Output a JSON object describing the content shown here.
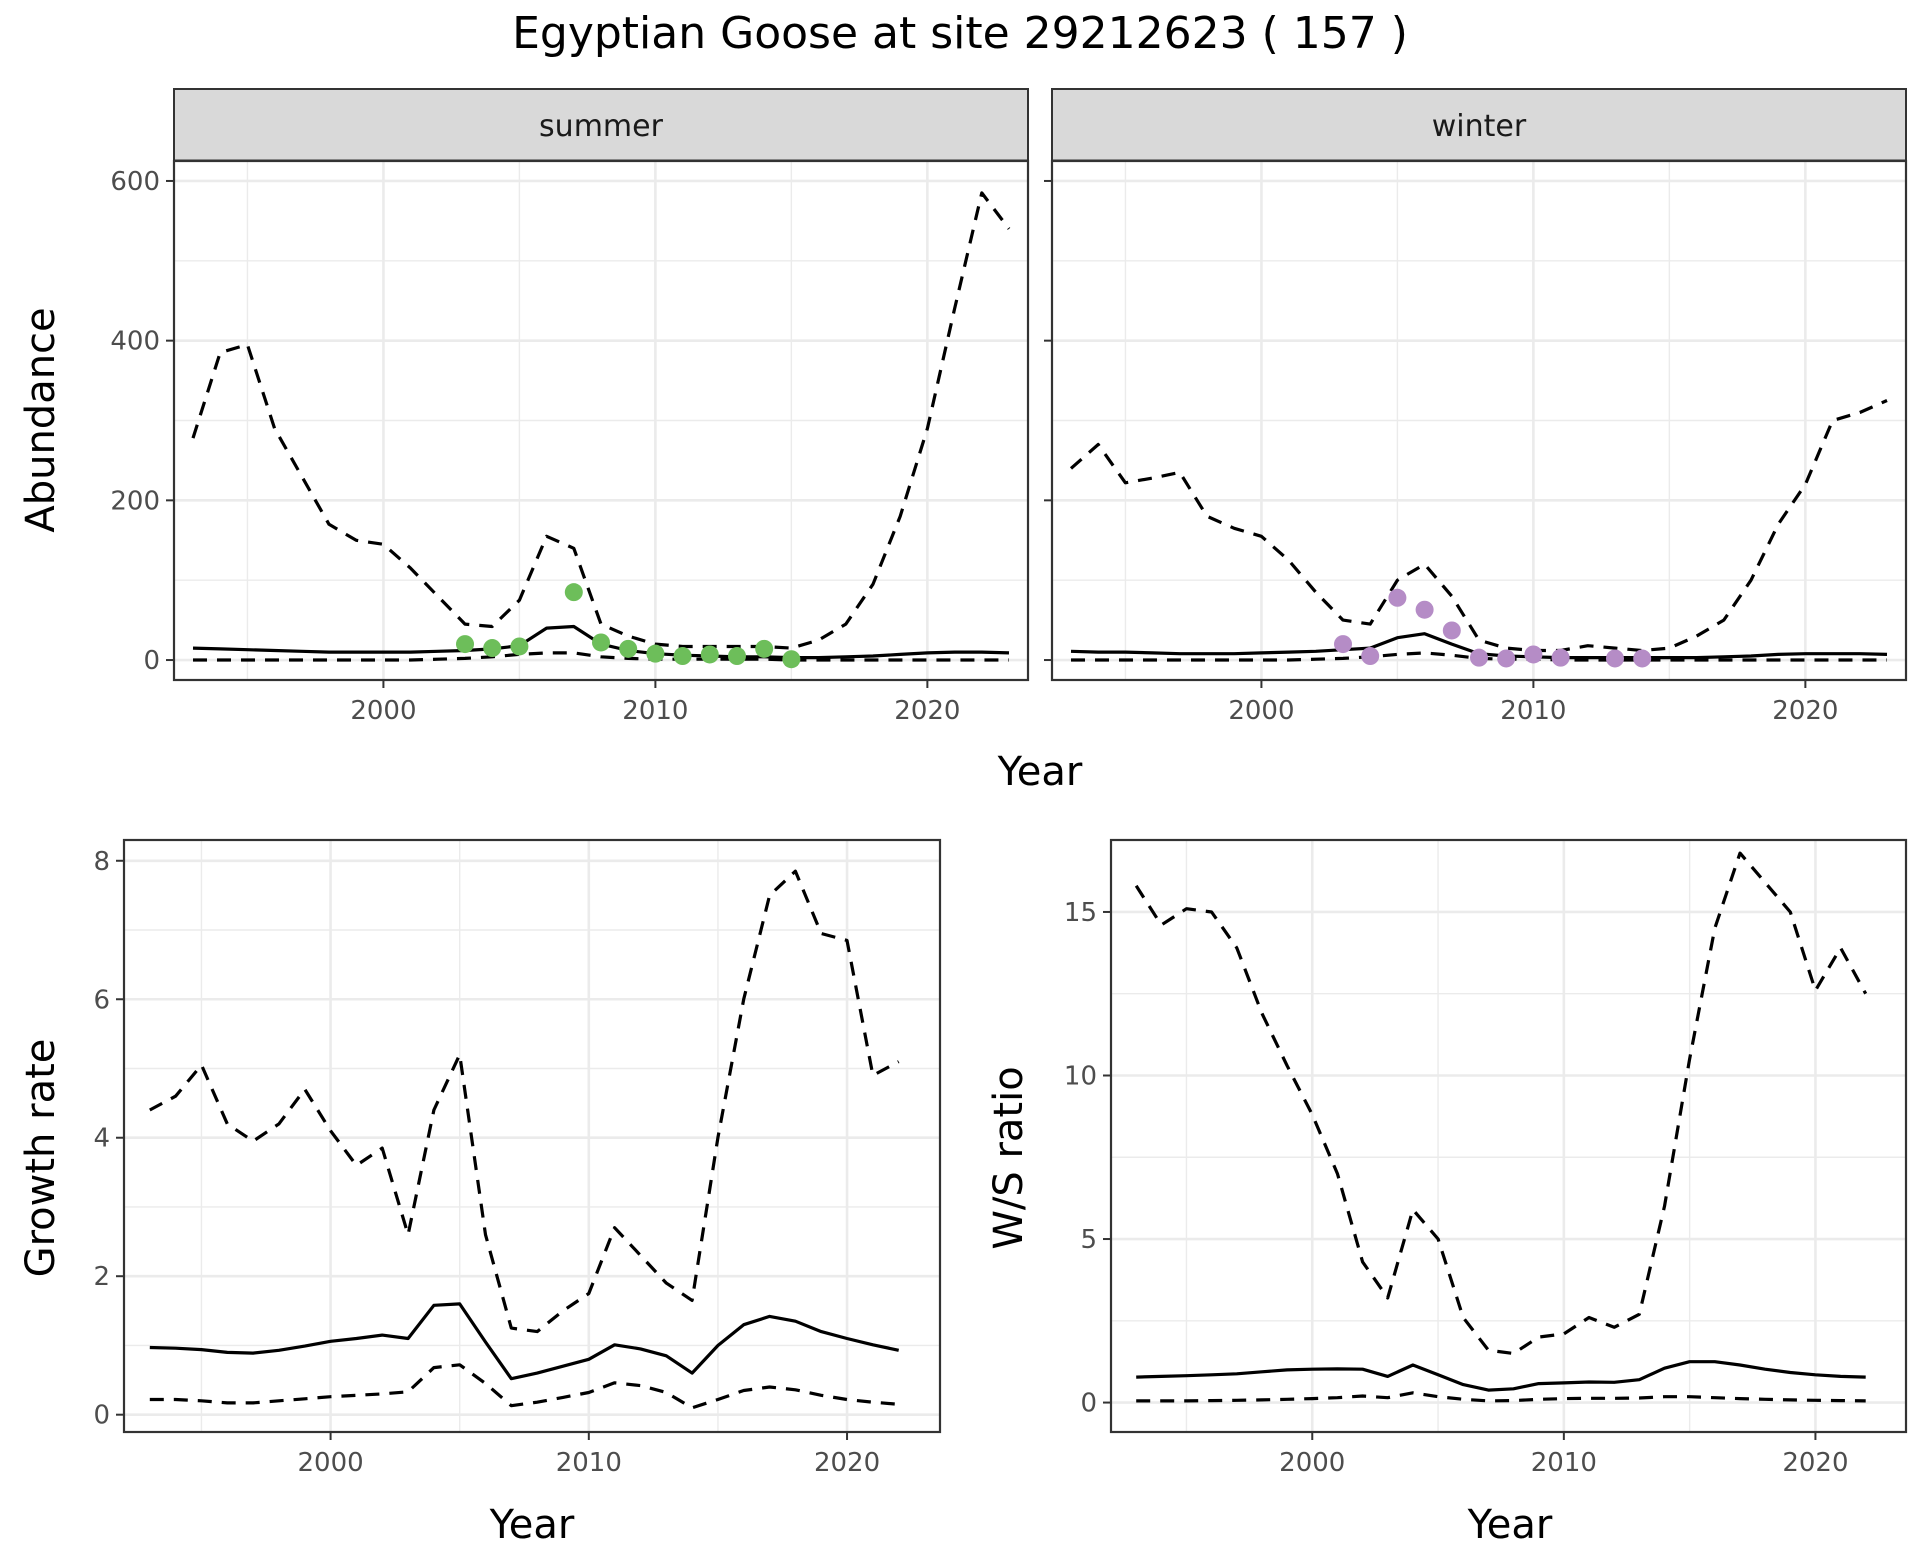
{
  "title": "Egyptian Goose at site 29212623 ( 157 )",
  "colors": {
    "summer_points": "#6dbe5a",
    "winter_points": "#b58cc6",
    "line": "#000000",
    "strip_fill": "#d9d9d9",
    "grid": "#ebebeb"
  },
  "chart_data": [
    {
      "id": "summer",
      "type": "line",
      "facet": "summer",
      "xlabel": "Year",
      "ylabel": "Abundance",
      "xlim": [
        1992.3,
        2023.7
      ],
      "ylim": [
        -25,
        625
      ],
      "xticks": [
        2000,
        2010,
        2020
      ],
      "yticks": [
        0,
        200,
        400,
        600
      ],
      "x": [
        1993,
        1994,
        1995,
        1996,
        1997,
        1998,
        1999,
        2000,
        2001,
        2002,
        2003,
        2004,
        2005,
        2006,
        2007,
        2008,
        2009,
        2010,
        2011,
        2012,
        2013,
        2014,
        2015,
        2016,
        2017,
        2018,
        2019,
        2020,
        2021,
        2022,
        2023
      ],
      "series": [
        {
          "role": "estimate",
          "values": [
            15,
            14,
            13,
            12,
            11,
            10,
            10,
            10,
            10,
            11,
            12,
            14,
            18,
            40,
            42,
            20,
            12,
            8,
            6,
            5,
            4,
            4,
            3,
            3,
            4,
            5,
            7,
            9,
            10,
            10,
            9
          ]
        },
        {
          "role": "upper",
          "values": [
            278,
            385,
            395,
            290,
            230,
            170,
            150,
            145,
            115,
            80,
            45,
            42,
            75,
            155,
            140,
            45,
            30,
            20,
            17,
            17,
            17,
            17,
            15,
            25,
            45,
            95,
            180,
            290,
            440,
            585,
            540
          ]
        },
        {
          "role": "lower",
          "values": [
            0,
            0,
            0,
            0,
            0,
            0,
            0,
            0,
            0,
            1,
            2,
            4,
            7,
            9,
            9,
            4,
            2,
            1,
            1,
            1,
            1,
            1,
            0,
            0,
            0,
            0,
            0,
            0,
            0,
            0,
            0
          ]
        }
      ],
      "points": {
        "color": "#6dbe5a",
        "x": [
          2003,
          2004,
          2005,
          2007,
          2008,
          2009,
          2010,
          2011,
          2012,
          2013,
          2014,
          2015
        ],
        "y": [
          20,
          15,
          17,
          85,
          22,
          14,
          8,
          5,
          7,
          5,
          14,
          1
        ]
      }
    },
    {
      "id": "winter",
      "type": "line",
      "facet": "winter",
      "xlabel": "Year",
      "ylabel": "Abundance",
      "xlim": [
        1992.3,
        2023.7
      ],
      "ylim": [
        -25,
        625
      ],
      "xticks": [
        2000,
        2010,
        2020
      ],
      "yticks": [
        0,
        200,
        400,
        600
      ],
      "x": [
        1993,
        1994,
        1995,
        1996,
        1997,
        1998,
        1999,
        2000,
        2001,
        2002,
        2003,
        2004,
        2005,
        2006,
        2007,
        2008,
        2009,
        2010,
        2011,
        2012,
        2013,
        2014,
        2015,
        2016,
        2017,
        2018,
        2019,
        2020,
        2021,
        2022,
        2023
      ],
      "series": [
        {
          "role": "estimate",
          "values": [
            11,
            10,
            10,
            9,
            8,
            8,
            8,
            9,
            10,
            11,
            13,
            15,
            28,
            33,
            20,
            8,
            5,
            4,
            3,
            3,
            3,
            3,
            3,
            3,
            4,
            5,
            7,
            8,
            8,
            8,
            7
          ]
        },
        {
          "role": "upper",
          "values": [
            240,
            270,
            222,
            228,
            235,
            180,
            165,
            155,
            125,
            85,
            50,
            45,
            100,
            120,
            80,
            25,
            15,
            12,
            12,
            18,
            15,
            12,
            15,
            30,
            50,
            100,
            170,
            220,
            300,
            310,
            325
          ]
        },
        {
          "role": "lower",
          "values": [
            0,
            0,
            0,
            0,
            0,
            0,
            0,
            0,
            0,
            1,
            2,
            4,
            7,
            9,
            6,
            2,
            1,
            1,
            0,
            0,
            0,
            0,
            0,
            0,
            0,
            0,
            0,
            0,
            0,
            0,
            0
          ]
        }
      ],
      "points": {
        "color": "#b58cc6",
        "x": [
          2003,
          2004,
          2005,
          2006,
          2007,
          2008,
          2009,
          2010,
          2011,
          2013,
          2014
        ],
        "y": [
          20,
          5,
          78,
          63,
          37,
          3,
          2,
          7,
          3,
          2,
          2
        ]
      }
    },
    {
      "id": "growth",
      "type": "line",
      "xlabel": "Year",
      "ylabel": "Growth rate",
      "xlim": [
        1992.0,
        2023.6
      ],
      "ylim": [
        -0.25,
        8.3
      ],
      "xticks": [
        2000,
        2010,
        2020
      ],
      "yticks": [
        0,
        2,
        4,
        6,
        8
      ],
      "x": [
        1993,
        1994,
        1995,
        1996,
        1997,
        1998,
        1999,
        2000,
        2001,
        2002,
        2003,
        2004,
        2005,
        2006,
        2007,
        2008,
        2009,
        2010,
        2011,
        2012,
        2013,
        2014,
        2015,
        2016,
        2017,
        2018,
        2019,
        2020,
        2021,
        2022
      ],
      "series": [
        {
          "role": "estimate",
          "values": [
            0.97,
            0.96,
            0.94,
            0.9,
            0.89,
            0.93,
            0.99,
            1.06,
            1.1,
            1.15,
            1.1,
            1.58,
            1.6,
            1.05,
            0.52,
            0.6,
            0.7,
            0.8,
            1.01,
            0.95,
            0.85,
            0.6,
            1.0,
            1.3,
            1.42,
            1.35,
            1.2,
            1.1,
            1.01,
            0.93
          ]
        },
        {
          "role": "upper",
          "values": [
            4.4,
            4.6,
            5.05,
            4.2,
            3.95,
            4.2,
            4.7,
            4.1,
            3.6,
            3.85,
            2.6,
            4.4,
            5.2,
            2.6,
            1.25,
            1.2,
            1.5,
            1.75,
            2.7,
            2.3,
            1.9,
            1.65,
            4.0,
            6.0,
            7.5,
            7.85,
            6.95,
            6.85,
            4.9,
            5.1
          ]
        },
        {
          "role": "lower",
          "values": [
            0.22,
            0.22,
            0.2,
            0.17,
            0.17,
            0.2,
            0.23,
            0.26,
            0.28,
            0.3,
            0.33,
            0.68,
            0.72,
            0.45,
            0.13,
            0.18,
            0.25,
            0.32,
            0.46,
            0.42,
            0.32,
            0.1,
            0.22,
            0.35,
            0.4,
            0.36,
            0.28,
            0.22,
            0.18,
            0.15
          ]
        }
      ]
    },
    {
      "id": "ratio",
      "type": "line",
      "xlabel": "Year",
      "ylabel": "W/S ratio",
      "xlim": [
        1992.0,
        2023.6
      ],
      "ylim": [
        -0.9,
        17.2
      ],
      "xticks": [
        2000,
        2010,
        2020
      ],
      "yticks": [
        0,
        5,
        10,
        15
      ],
      "x": [
        1993,
        1994,
        1995,
        1996,
        1997,
        1998,
        1999,
        2000,
        2001,
        2002,
        2003,
        2004,
        2005,
        2006,
        2007,
        2008,
        2009,
        2010,
        2011,
        2012,
        2013,
        2014,
        2015,
        2016,
        2017,
        2018,
        2019,
        2020,
        2021,
        2022
      ],
      "series": [
        {
          "role": "estimate",
          "values": [
            0.78,
            0.8,
            0.82,
            0.85,
            0.88,
            0.94,
            1.0,
            1.02,
            1.03,
            1.02,
            0.8,
            1.15,
            0.85,
            0.55,
            0.38,
            0.42,
            0.58,
            0.6,
            0.63,
            0.62,
            0.7,
            1.05,
            1.25,
            1.25,
            1.15,
            1.02,
            0.92,
            0.85,
            0.8,
            0.78
          ]
        },
        {
          "role": "upper",
          "values": [
            15.8,
            14.6,
            15.1,
            15.0,
            13.9,
            11.9,
            10.3,
            8.8,
            7.0,
            4.3,
            3.2,
            5.9,
            5.0,
            2.6,
            1.6,
            1.5,
            2.0,
            2.1,
            2.6,
            2.3,
            2.7,
            6.0,
            10.5,
            14.5,
            16.8,
            15.9,
            15.0,
            12.6,
            13.9,
            12.5
          ]
        },
        {
          "role": "lower",
          "values": [
            0.05,
            0.05,
            0.05,
            0.06,
            0.07,
            0.08,
            0.1,
            0.12,
            0.15,
            0.2,
            0.15,
            0.3,
            0.18,
            0.1,
            0.05,
            0.06,
            0.1,
            0.12,
            0.13,
            0.13,
            0.14,
            0.18,
            0.18,
            0.15,
            0.12,
            0.1,
            0.08,
            0.07,
            0.06,
            0.05
          ]
        }
      ]
    }
  ]
}
